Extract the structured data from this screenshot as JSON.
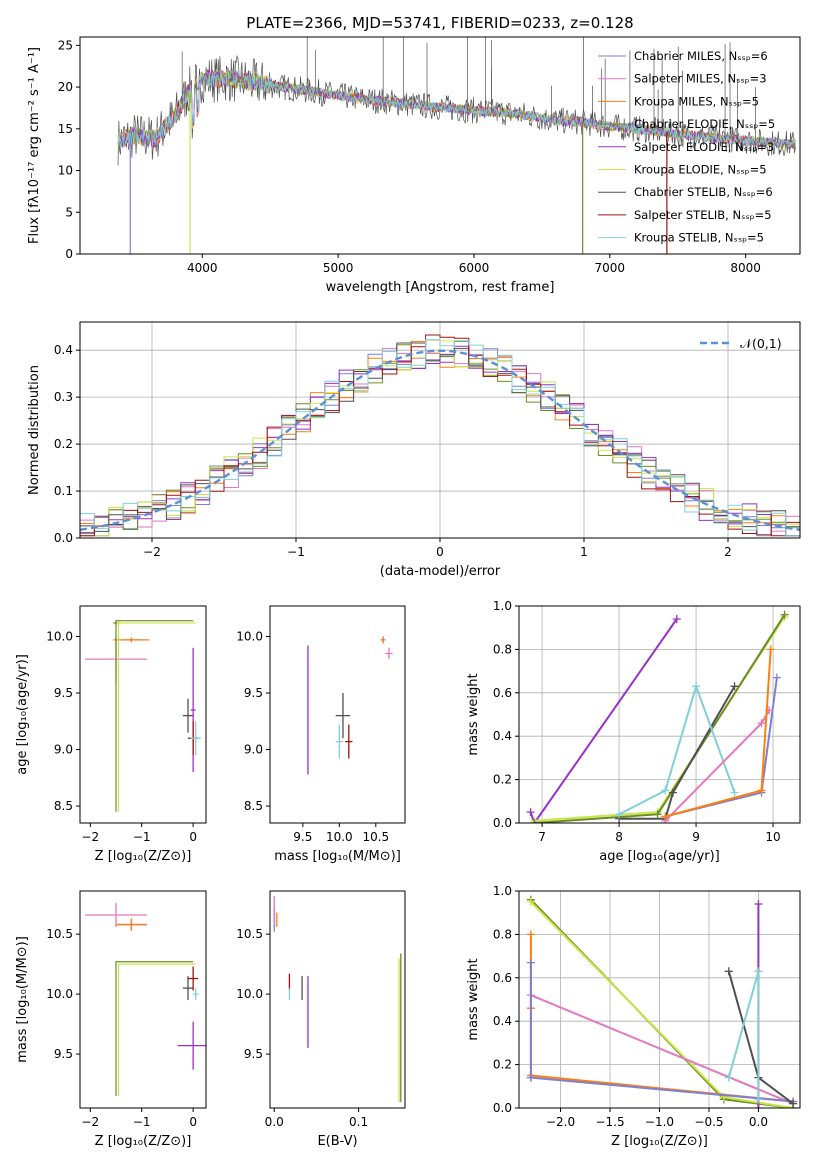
{
  "figure": {
    "title": "PLATE=2366, MJD=53741, FIBERID=0233, z=0.128"
  },
  "colors": {
    "chabrier_miles": "#7b7fd6",
    "salpeter_miles": "#e377c2",
    "kroupa_miles": "#ff7f0e",
    "chabrier_elodie": "#6b8e23",
    "salpeter_elodie": "#9b30c8",
    "kroupa_elodie": "#c8e64a",
    "chabrier_stelib": "#505050",
    "salpeter_stelib": "#a01010",
    "kroupa_stelib": "#7fd0d8",
    "normal_curve": "#5b8fd6",
    "grid": "#b0b0b0"
  },
  "chart_data": [
    {
      "id": "spectrum",
      "type": "line",
      "xlabel": "wavelength [Angstrom, rest frame]",
      "ylabel": "Flux [fλ10⁻¹⁷ erg cm⁻² s⁻¹ A⁻¹]",
      "xlim": [
        3100,
        8400
      ],
      "ylim": [
        0,
        26
      ],
      "xticks": [
        "4000",
        "5000",
        "6000",
        "7000",
        "8000"
      ],
      "yticks": [
        "0",
        "5",
        "10",
        "15",
        "20",
        "25"
      ],
      "grid": false,
      "legend_position": "right",
      "legend": [
        "Chabrier MILES, Nₛₛₚ=6",
        "Salpeter MILES, Nₛₛₚ=3",
        "Kroupa MILES, Nₛₛₚ=5",
        "Chabrier ELODIE, Nₛₛₚ=5",
        "Salpeter ELODIE, Nₛₛₚ=3",
        "Kroupa ELODIE, Nₛₛₚ=5",
        "Chabrier STELIB, Nₛₛₚ=6",
        "Salpeter STELIB, Nₛₛₚ=5",
        "Kroupa STELIB, Nₛₛₚ=5"
      ],
      "continuum": {
        "x": [
          3380,
          3500,
          3650,
          3800,
          3900,
          4000,
          4200,
          4400,
          4600,
          4800,
          5000,
          5200,
          5400,
          5600,
          5800,
          6000,
          6200,
          6400,
          6600,
          6800,
          7000,
          7200,
          7400,
          7600,
          7800,
          8000,
          8200,
          8370
        ],
        "y": [
          13.5,
          14.2,
          13.8,
          16.5,
          19.5,
          21.0,
          21.0,
          20.5,
          20.0,
          19.5,
          19.0,
          18.5,
          18.2,
          17.8,
          17.5,
          17.2,
          17.0,
          16.6,
          16.0,
          15.8,
          15.3,
          15.0,
          14.6,
          14.2,
          13.9,
          13.6,
          13.3,
          13.2
        ]
      }
    },
    {
      "id": "residuals",
      "type": "histogram",
      "xlabel": "(data-model)/error",
      "ylabel": "Normed distribution",
      "xlim": [
        -2.5,
        2.5
      ],
      "ylim": [
        0,
        0.46
      ],
      "xticks": [
        "−2",
        "−1",
        "0",
        "1",
        "2"
      ],
      "yticks": [
        "0.0",
        "0.1",
        "0.2",
        "0.3",
        "0.4"
      ],
      "grid": true,
      "legend_position": "top-right",
      "legend": "𝒩(0,1)",
      "bin_width": 0.1
    },
    {
      "id": "age_vs_Z",
      "type": "errorbar",
      "xlabel": "Z [log₁₀(Z/Z⊙)]",
      "ylabel": "age  [log₁₀(age/yr)]",
      "xlim": [
        -2.2,
        0.25
      ],
      "ylim": [
        8.35,
        10.27
      ],
      "xticks": [
        "−2",
        "−1",
        "0"
      ],
      "yticks": [
        "8.5",
        "9.0",
        "9.5",
        "10.0"
      ],
      "points": [
        {
          "series": "Chabrier MILES",
          "x": -1.2,
          "y": 9.97,
          "xerr": 0.15,
          "yerr": 0.02
        },
        {
          "series": "Salpeter MILES",
          "x": -1.5,
          "y": 9.8,
          "xerr": 0.6,
          "yerr": 0.2
        },
        {
          "series": "Kroupa MILES",
          "x": -1.2,
          "y": 9.97,
          "xerr": 0.35,
          "yerr": 0.02
        },
        {
          "series": "Chabrier ELODIE",
          "x": -1.5,
          "y": 10.12,
          "xerr": 0.05,
          "yerr": 0.02
        },
        {
          "series": "Salpeter ELODIE",
          "x": 0.0,
          "y": 9.35,
          "xerr": 0.05,
          "yerr": 0.55
        },
        {
          "series": "Kroupa ELODIE",
          "x": -1.45,
          "y": 10.12,
          "xerr": 0.05,
          "yerr": 0.02
        },
        {
          "series": "Chabrier STELIB",
          "x": -0.1,
          "y": 9.3,
          "xerr": 0.1,
          "yerr": 0.15
        },
        {
          "series": "Salpeter STELIB",
          "x": 0.0,
          "y": 9.1,
          "xerr": 0.1,
          "yerr": 0.15
        },
        {
          "series": "Kroupa STELIB",
          "x": 0.05,
          "y": 9.1,
          "xerr": 0.1,
          "yerr": 0.15
        }
      ]
    },
    {
      "id": "age_vs_mass",
      "type": "errorbar",
      "xlabel": "mass [log₁₀(M/M⊙)]",
      "xlim": [
        9.05,
        10.9
      ],
      "ylim": [
        8.35,
        10.27
      ],
      "xticks": [
        "9.5",
        "10.0",
        "10.5"
      ],
      "yticks": [
        "8.5",
        "9.0",
        "9.5",
        "10.0"
      ],
      "points": [
        {
          "series": "Chabrier MILES",
          "x": 10.6,
          "y": 9.97,
          "xerr": 0.03,
          "yerr": 0.03
        },
        {
          "series": "Salpeter MILES",
          "x": 10.68,
          "y": 9.85,
          "xerr": 0.05,
          "yerr": 0.05
        },
        {
          "series": "Kroupa MILES",
          "x": 10.6,
          "y": 9.97,
          "xerr": 0.03,
          "yerr": 0.03
        },
        {
          "series": "Chabrier ELODIE",
          "x": 10.28,
          "y": 10.12,
          "xerr": 0.0,
          "yerr": 0.0
        },
        {
          "series": "Salpeter ELODIE",
          "x": 9.57,
          "y": 9.35,
          "xerr": 0.0,
          "yerr": 0.57
        },
        {
          "series": "Kroupa ELODIE",
          "x": 10.25,
          "y": 10.12,
          "xerr": 0.0,
          "yerr": 0.0
        },
        {
          "series": "Chabrier STELIB",
          "x": 10.05,
          "y": 9.3,
          "xerr": 0.1,
          "yerr": 0.2
        },
        {
          "series": "Salpeter STELIB",
          "x": 10.13,
          "y": 9.07,
          "xerr": 0.05,
          "yerr": 0.15
        },
        {
          "series": "Kroupa STELIB",
          "x": 10.0,
          "y": 9.07,
          "xerr": 0.05,
          "yerr": 0.15
        }
      ]
    },
    {
      "id": "weight_vs_age",
      "type": "line",
      "xlabel": "age  [log₁₀(age/yr)]",
      "ylabel": "mass weight",
      "xlim": [
        6.7,
        10.35
      ],
      "ylim": [
        0,
        1
      ],
      "xticks": [
        "7",
        "8",
        "9",
        "10"
      ],
      "yticks": [
        "0.0",
        "0.2",
        "0.4",
        "0.6",
        "0.8",
        "1.0"
      ],
      "grid": true,
      "series": [
        {
          "series": "Salpeter ELODIE",
          "x": [
            6.85,
            6.9,
            8.75
          ],
          "y": [
            0.05,
            0.0,
            0.94
          ]
        },
        {
          "series": "Kroupa ELODIE",
          "x": [
            6.9,
            8.5,
            10.15
          ],
          "y": [
            0.01,
            0.05,
            0.95
          ]
        },
        {
          "series": "Chabrier ELODIE",
          "x": [
            6.9,
            8.5,
            10.15
          ],
          "y": [
            0.0,
            0.04,
            0.96
          ]
        },
        {
          "series": "Chabrier STELIB",
          "x": [
            8.0,
            8.6,
            8.7,
            9.5
          ],
          "y": [
            0.02,
            0.02,
            0.14,
            0.63
          ]
        },
        {
          "series": "Kroupa STELIB",
          "x": [
            8.0,
            8.6,
            9.0,
            9.5
          ],
          "y": [
            0.04,
            0.15,
            0.63,
            0.14
          ]
        },
        {
          "series": "Chabrier MILES",
          "x": [
            8.6,
            9.85,
            10.05
          ],
          "y": [
            0.03,
            0.14,
            0.67
          ]
        },
        {
          "series": "Salpeter MILES",
          "x": [
            8.6,
            9.85,
            9.95
          ],
          "y": [
            0.01,
            0.46,
            0.52
          ]
        },
        {
          "series": "Kroupa MILES",
          "x": [
            8.6,
            9.85,
            9.97
          ],
          "y": [
            0.03,
            0.15,
            0.8
          ]
        }
      ]
    },
    {
      "id": "mass_vs_Z",
      "type": "errorbar",
      "xlabel": "Z [log₁₀(Z/Z⊙)]",
      "ylabel": "mass [log₁₀(M/M⊙)]",
      "xlim": [
        -2.2,
        0.25
      ],
      "ylim": [
        9.05,
        10.86
      ],
      "xticks": [
        "−2",
        "−1",
        "0"
      ],
      "yticks": [
        "9.5",
        "10.0",
        "10.5"
      ],
      "points": [
        {
          "series": "Chabrier MILES",
          "x": -1.2,
          "y": 10.58,
          "xerr": 0.3,
          "yerr": 0.05
        },
        {
          "series": "Salpeter MILES",
          "x": -1.5,
          "y": 10.66,
          "xerr": 0.6,
          "yerr": 0.1
        },
        {
          "series": "Kroupa MILES",
          "x": -1.2,
          "y": 10.58,
          "xerr": 0.3,
          "yerr": 0.05
        },
        {
          "series": "Chabrier ELODIE",
          "x": -1.5,
          "y": 10.28,
          "xerr": 0.0,
          "yerr": 0.0
        },
        {
          "series": "Salpeter ELODIE",
          "x": 0.0,
          "y": 9.57,
          "xerr": 0.3,
          "yerr": 0.2
        },
        {
          "series": "Kroupa ELODIE",
          "x": -1.45,
          "y": 10.25,
          "xerr": 0.0,
          "yerr": 0.0
        },
        {
          "series": "Chabrier STELIB",
          "x": -0.1,
          "y": 10.05,
          "xerr": 0.1,
          "yerr": 0.1
        },
        {
          "series": "Salpeter STELIB",
          "x": 0.0,
          "y": 10.13,
          "xerr": 0.1,
          "yerr": 0.1
        },
        {
          "series": "Kroupa STELIB",
          "x": 0.05,
          "y": 10.0,
          "xerr": 0.05,
          "yerr": 0.05
        }
      ]
    },
    {
      "id": "mass_vs_ebv",
      "type": "errorbar",
      "xlabel": "E(B-V)",
      "xlim": [
        -0.005,
        0.155
      ],
      "ylim": [
        9.05,
        10.86
      ],
      "xticks": [
        "0.0",
        "0.1"
      ],
      "yticks": [
        "9.5",
        "10.0",
        "10.5"
      ],
      "points": [
        {
          "series": "Chabrier MILES",
          "x": 0.0,
          "y": 10.62,
          "xerr": 0.0,
          "yerr": 0.1
        },
        {
          "series": "Salpeter MILES",
          "x": 0.0,
          "y": 10.7,
          "xerr": 0.0,
          "yerr": 0.12
        },
        {
          "series": "Kroupa MILES",
          "x": 0.003,
          "y": 10.62,
          "xerr": 0.0,
          "yerr": 0.06
        },
        {
          "series": "Chabrier ELODIE",
          "x": 0.15,
          "y": 9.72,
          "xerr": 0.0,
          "yerr": 0.62
        },
        {
          "series": "Salpeter ELODIE",
          "x": 0.04,
          "y": 9.85,
          "xerr": 0.0,
          "yerr": 0.3
        },
        {
          "series": "Kroupa ELODIE",
          "x": 0.148,
          "y": 9.7,
          "xerr": 0.0,
          "yerr": 0.6
        },
        {
          "series": "Chabrier STELIB",
          "x": 0.033,
          "y": 10.05,
          "xerr": 0.0,
          "yerr": 0.1
        },
        {
          "series": "Salpeter STELIB",
          "x": 0.018,
          "y": 10.1,
          "xerr": 0.0,
          "yerr": 0.07
        },
        {
          "series": "Kroupa STELIB",
          "x": 0.018,
          "y": 10.0,
          "xerr": 0.0,
          "yerr": 0.05
        }
      ]
    },
    {
      "id": "weight_vs_Z",
      "type": "line",
      "xlabel": "Z [log₁₀(Z/Z⊙)]",
      "ylabel": "mass weight",
      "xlim": [
        -2.42,
        0.42
      ],
      "ylim": [
        0,
        1
      ],
      "xticks": [
        "−2.0",
        "−1.5",
        "−1.0",
        "−0.5",
        "0.0"
      ],
      "yticks": [
        "0.0",
        "0.2",
        "0.4",
        "0.6",
        "0.8",
        "1.0"
      ],
      "grid": true,
      "series": [
        {
          "series": "Chabrier ELODIE",
          "x": [
            -2.3,
            -0.35,
            0.35
          ],
          "y": [
            0.96,
            0.04,
            0.0
          ]
        },
        {
          "series": "Kroupa ELODIE",
          "x": [
            -2.3,
            -0.35,
            0.35
          ],
          "y": [
            0.95,
            0.05,
            0.0
          ]
        },
        {
          "series": "Salpeter MILES",
          "x": [
            -2.3,
            0.35
          ],
          "y": [
            0.52,
            0.02
          ]
        },
        {
          "series": "Kroupa MILES",
          "x": [
            -2.3,
            -2.3,
            -2.3,
            0.35
          ],
          "y": [
            0.8,
            0.46,
            0.15,
            0.03
          ]
        },
        {
          "series": "Chabrier MILES",
          "x": [
            -2.3,
            -2.3,
            -2.3,
            0.35
          ],
          "y": [
            0.67,
            0.14,
            0.14,
            0.03
          ]
        },
        {
          "series": "Salpeter ELODIE",
          "x": [
            0.0,
            0.0
          ],
          "y": [
            0.94,
            0.0
          ]
        },
        {
          "series": "Chabrier STELIB",
          "x": [
            -0.3,
            0.0,
            0.35
          ],
          "y": [
            0.63,
            0.14,
            0.02
          ]
        },
        {
          "series": "Kroupa STELIB",
          "x": [
            -0.3,
            0.0,
            0.0
          ],
          "y": [
            0.14,
            0.63,
            0.04
          ]
        }
      ]
    }
  ]
}
